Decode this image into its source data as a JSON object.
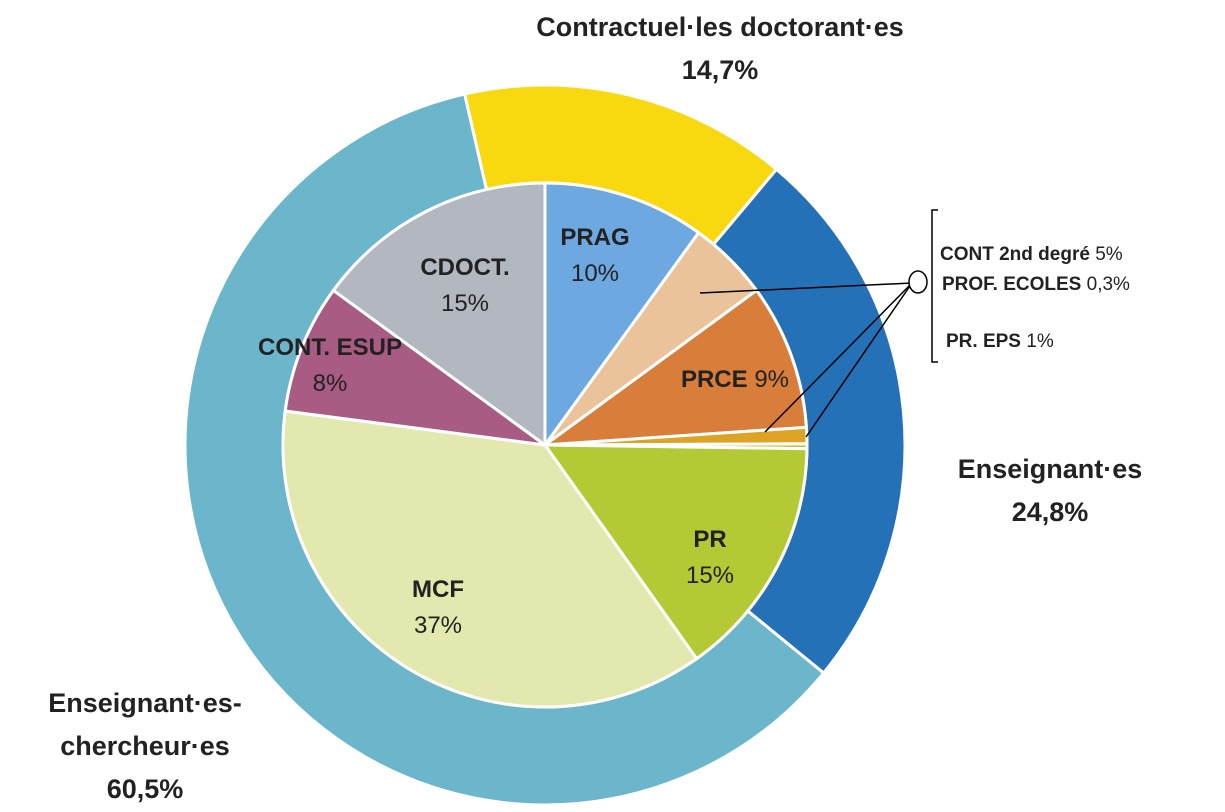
{
  "chart_data": {
    "type": "pie",
    "rings": [
      {
        "labels": [
          "Contractuel·les doctorant·es",
          "Enseignant·es",
          "Enseignant·es-chercheur·es"
        ],
        "values": [
          14.7,
          24.8,
          60.5
        ],
        "value_labels": [
          "14,7%",
          "24,8%",
          "60,5%"
        ],
        "colors": [
          "#f8d90f",
          "#2571b8",
          "#6cb6cb"
        ]
      },
      {
        "labels": [
          "PRAG",
          "CONT 2nd degré",
          "PRCE",
          "PR. EPS",
          "PROF. ECOLES",
          "PR",
          "MCF",
          "CONT. ESUP",
          "CDOCT."
        ],
        "values": [
          10,
          5,
          9,
          1,
          0.3,
          15,
          37,
          8,
          15
        ],
        "value_labels": [
          "10%",
          "5%",
          "9%",
          "1%",
          "0,3%",
          "15%",
          "37%",
          "8%",
          "15%"
        ],
        "colors": [
          "#6da9e0",
          "#eac39a",
          "#d97e3a",
          "#dea224",
          "#c9c23e",
          "#b5c935",
          "#e3e9ae",
          "#a85c84",
          "#b3b8c0"
        ]
      }
    ]
  }
}
